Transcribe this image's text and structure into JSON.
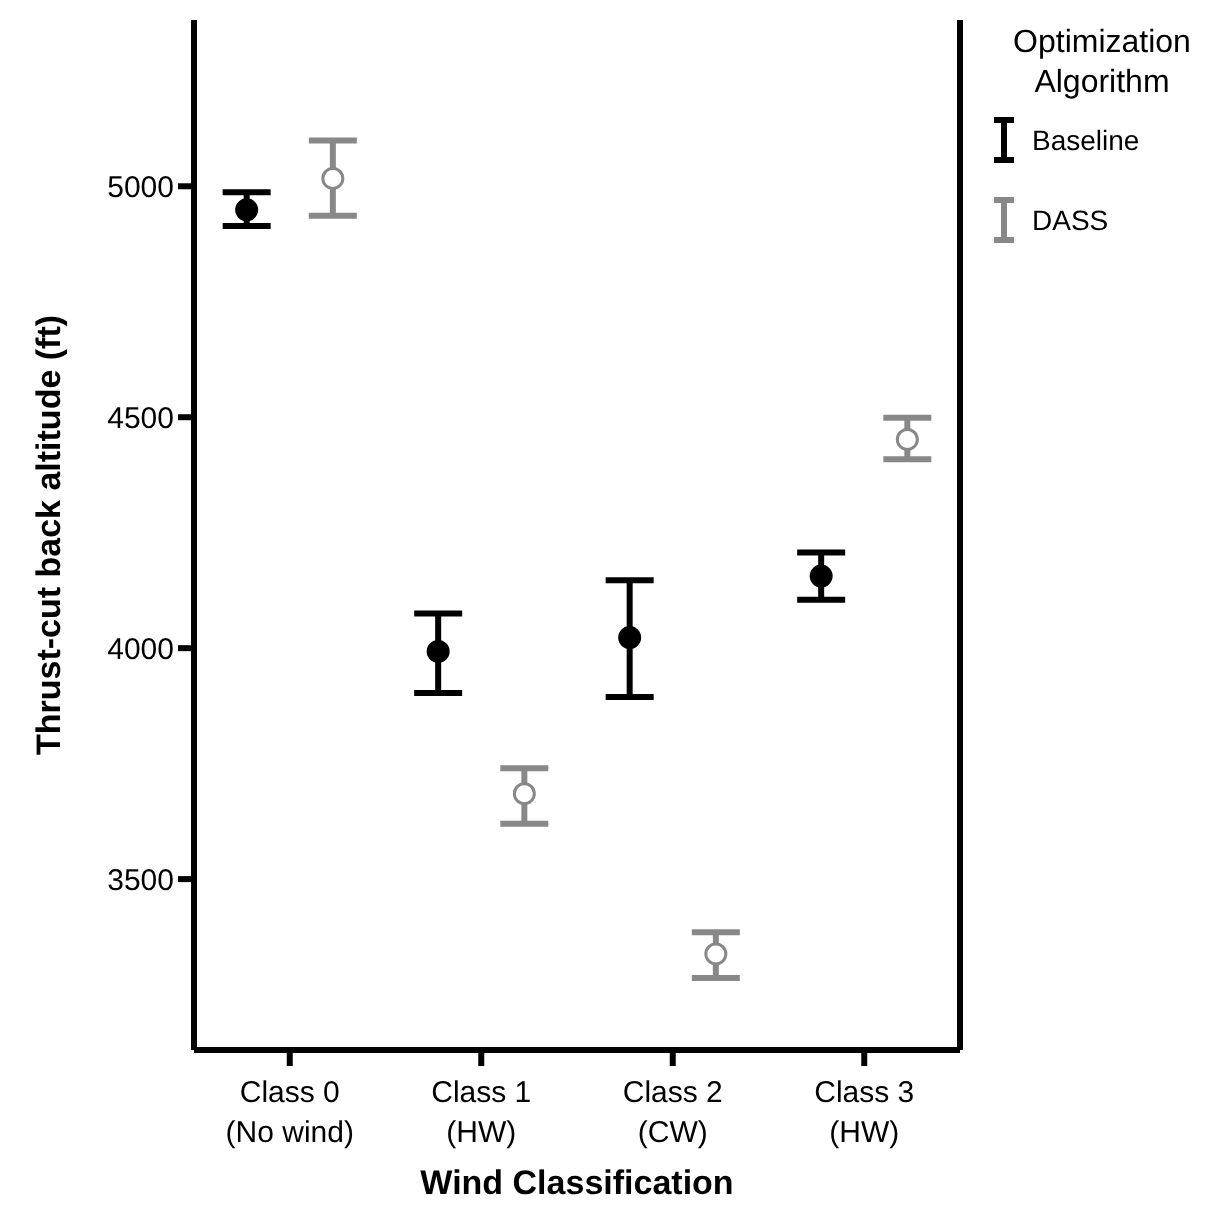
{
  "chart_data": {
    "type": "scatter",
    "xlabel": "Wind Classification",
    "ylabel": "Thrust-cut back altitude (ft)",
    "legend_title": "Optimization Algorithm",
    "categories": [
      "Class 0\n(No wind)",
      "Class 1\n(HW)",
      "Class 2\n(CW)",
      "Class 3\n(HW)"
    ],
    "series": [
      {
        "name": "Baseline",
        "color": "#000000",
        "values": [
          4949,
          3993,
          4023,
          4156
        ],
        "errors": [
          [
            4914,
            4987
          ],
          [
            3903,
            4075
          ],
          [
            3894,
            4147
          ],
          [
            4105,
            4207
          ]
        ]
      },
      {
        "name": "DASS",
        "color": "#888888",
        "values": [
          5017,
          3685,
          3338,
          4452
        ],
        "errors": [
          [
            4936,
            5099
          ],
          [
            3620,
            3740
          ],
          [
            3286,
            3385
          ],
          [
            4409,
            4499
          ]
        ]
      }
    ],
    "ylim": [
      3130,
      5360
    ],
    "yticks": [
      3500,
      4000,
      4500,
      5000
    ],
    "legend": "top right",
    "marker": "circle"
  }
}
